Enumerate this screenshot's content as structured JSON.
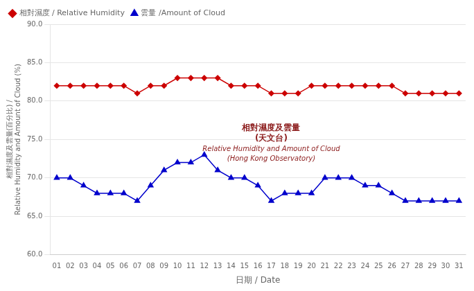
{
  "chart_data": {
    "type": "line",
    "xlabel": "日期 / Date",
    "ylabel": "相對濕度及雲量(百分比) /\nRelative Humidity and Amount of Cloud (%)",
    "x": [
      1,
      2,
      3,
      4,
      5,
      6,
      7,
      8,
      9,
      10,
      11,
      12,
      13,
      14,
      15,
      16,
      17,
      18,
      19,
      20,
      21,
      22,
      23,
      24,
      25,
      26,
      27,
      28,
      29,
      30,
      31
    ],
    "xlim": [
      0.5,
      31.5
    ],
    "xticks": [
      {
        "value": 1,
        "label": "01"
      },
      {
        "value": 2,
        "label": "02"
      },
      {
        "value": 3,
        "label": "03"
      },
      {
        "value": 4,
        "label": "04"
      },
      {
        "value": 5,
        "label": "05"
      },
      {
        "value": 6,
        "label": "06"
      },
      {
        "value": 7,
        "label": "07"
      },
      {
        "value": 8,
        "label": "08"
      },
      {
        "value": 9,
        "label": "09"
      },
      {
        "value": 10,
        "label": "10"
      },
      {
        "value": 11,
        "label": "11"
      },
      {
        "value": 12,
        "label": "12"
      },
      {
        "value": 13,
        "label": "13"
      },
      {
        "value": 14,
        "label": "14"
      },
      {
        "value": 15,
        "label": "15"
      },
      {
        "value": 16,
        "label": "16"
      },
      {
        "value": 17,
        "label": "17"
      },
      {
        "value": 18,
        "label": "18"
      },
      {
        "value": 19,
        "label": "19"
      },
      {
        "value": 20,
        "label": "20"
      },
      {
        "value": 21,
        "label": "21"
      },
      {
        "value": 22,
        "label": "22"
      },
      {
        "value": 23,
        "label": "23"
      },
      {
        "value": 24,
        "label": "24"
      },
      {
        "value": 25,
        "label": "25"
      },
      {
        "value": 26,
        "label": "26"
      },
      {
        "value": 27,
        "label": "27"
      },
      {
        "value": 28,
        "label": "28"
      },
      {
        "value": 29,
        "label": "29"
      },
      {
        "value": 30,
        "label": "30"
      },
      {
        "value": 31,
        "label": "31"
      }
    ],
    "ylim": [
      60.0,
      90.0
    ],
    "yticks": [
      {
        "value": 60.0,
        "label": "60.0"
      },
      {
        "value": 65.0,
        "label": "65.0"
      },
      {
        "value": 70.0,
        "label": "70.0"
      },
      {
        "value": 75.0,
        "label": "75.0"
      },
      {
        "value": 80.0,
        "label": "80.0"
      },
      {
        "value": 85.0,
        "label": "85.0"
      },
      {
        "value": 90.0,
        "label": "90.0"
      }
    ],
    "series": [
      {
        "name": "相對濕度 / Relative Humidity",
        "color": "#cc0000",
        "marker": "diamond",
        "line_style": "solid",
        "values": [
          82,
          82,
          82,
          82,
          82,
          82,
          81,
          82,
          82,
          83,
          83,
          83,
          83,
          82,
          82,
          82,
          81,
          81,
          81,
          82,
          82,
          82,
          82,
          82,
          82,
          82,
          81,
          81,
          81,
          81,
          81
        ]
      },
      {
        "name": "雲量 /Amount of Cloud",
        "color": "#0000cc",
        "marker": "triangle",
        "line_style": "solid",
        "values": [
          70,
          70,
          69,
          68,
          68,
          68,
          67,
          69,
          71,
          72,
          72,
          73,
          71,
          70,
          70,
          69,
          67,
          68,
          68,
          68,
          70,
          70,
          70,
          69,
          69,
          68,
          67,
          67,
          67,
          67,
          67
        ]
      }
    ],
    "annotations": [
      {
        "text": "相對濕度及雲量",
        "x": 17,
        "y": 76.5,
        "color": "#8b1a1a"
      },
      {
        "text": "(天文台)",
        "x": 17,
        "y": 75.1,
        "color": "#8b1a1a"
      },
      {
        "text": "Relative Humidity and Amount of Cloud",
        "x": 17,
        "y": 73.7,
        "color": "#8b1a1a"
      },
      {
        "text": "(Hong Kong Observatory)",
        "x": 17,
        "y": 72.5,
        "color": "#8b1a1a"
      }
    ],
    "grid": "y",
    "legend": "upper left"
  }
}
